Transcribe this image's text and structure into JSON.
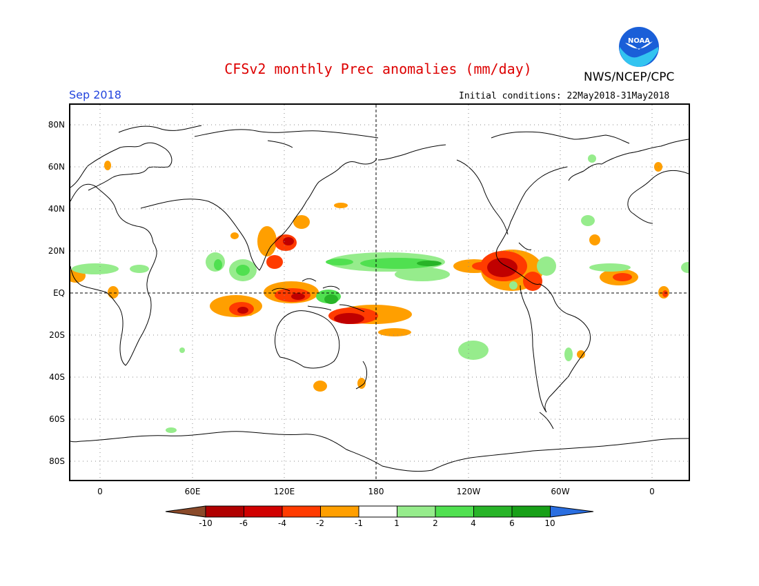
{
  "header": {
    "title": "CFSv2 monthly Prec anomalies (mm/day)",
    "agency": "NWS/NCEP/CPC",
    "valid_month": "Sep 2018",
    "initial_conditions": "Initial conditions: 22May2018-31May2018",
    "logo_text": "NOAA"
  },
  "axes": {
    "lat_labels": [
      "80N",
      "60N",
      "40N",
      "20N",
      "EQ",
      "20S",
      "40S",
      "60S",
      "80S"
    ],
    "lon_labels": [
      "0",
      "60E",
      "120E",
      "180",
      "120W",
      "60W",
      "0"
    ]
  },
  "colorbar": {
    "labels": [
      "-10",
      "-6",
      "-4",
      "-2",
      "-1",
      "1",
      "2",
      "4",
      "6",
      "10"
    ],
    "colors": [
      "#8a4a2a",
      "#b00000",
      "#d00000",
      "#ff3b00",
      "#ff9f00",
      "#ffffff",
      "#96ec8c",
      "#50e050",
      "#28b428",
      "#18a018",
      "#2a6ee0"
    ]
  },
  "colors": {
    "title": "#dd0000",
    "valid_month": "#2244dd"
  }
}
